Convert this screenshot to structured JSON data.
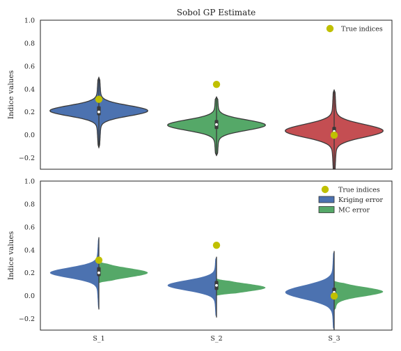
{
  "chart_data": [
    {
      "type": "violin",
      "title": "Sobol GP Estimate",
      "xlabel": "",
      "ylabel": "Indice values",
      "ylim": [
        -0.3,
        1.0
      ],
      "yticks": [
        -0.2,
        0.0,
        0.2,
        0.4,
        0.6,
        0.8,
        1.0
      ],
      "yticklabels": [
        "−0.2",
        "0.0",
        "0.2",
        "0.4",
        "0.6",
        "0.8",
        "1.0"
      ],
      "categories": [
        "S_1",
        "S_2",
        "S_3"
      ],
      "show_xticklabels": false,
      "split": false,
      "legend": {
        "position": "top-right",
        "entries": [
          {
            "label": "True indices",
            "kind": "marker",
            "color": "#c0c000"
          }
        ]
      },
      "violins": [
        {
          "category": "S_1",
          "color": "#4c72b0",
          "min": -0.11,
          "max": 0.5,
          "q1": 0.17,
          "median": 0.2,
          "q3": 0.25,
          "mode": 0.21,
          "spread": 0.045
        },
        {
          "category": "S_2",
          "color": "#55a868",
          "min": -0.18,
          "max": 0.33,
          "q1": 0.05,
          "median": 0.09,
          "q3": 0.13,
          "mode": 0.085,
          "spread": 0.045
        },
        {
          "category": "S_3",
          "color": "#c44e52",
          "min": -0.33,
          "max": 0.39,
          "q1": -0.02,
          "median": 0.03,
          "q3": 0.07,
          "mode": 0.035,
          "spread": 0.055
        }
      ],
      "true_indices": [
        0.31,
        0.44,
        -0.003
      ]
    },
    {
      "type": "violin",
      "title": "",
      "xlabel": "",
      "ylabel": "Indice values",
      "ylim": [
        -0.3,
        1.0
      ],
      "yticks": [
        -0.2,
        0.0,
        0.2,
        0.4,
        0.6,
        0.8,
        1.0
      ],
      "yticklabels": [
        "−0.2",
        "0.0",
        "0.2",
        "0.4",
        "0.6",
        "0.8",
        "1.0"
      ],
      "categories": [
        "S_1",
        "S_2",
        "S_3"
      ],
      "show_xticklabels": true,
      "split": true,
      "legend": {
        "position": "top-right",
        "entries": [
          {
            "label": "True indices",
            "kind": "marker",
            "color": "#c0c000"
          },
          {
            "label": "Kriging error",
            "kind": "patch",
            "color": "#4c72b0"
          },
          {
            "label": "MC error",
            "kind": "patch",
            "color": "#55a868"
          }
        ]
      },
      "series": [
        {
          "name": "Kriging error",
          "side": "left",
          "color": "#4c72b0",
          "violins": [
            {
              "category": "S_1",
              "min": -0.12,
              "max": 0.51,
              "q1": 0.17,
              "median": 0.2,
              "q3": 0.25,
              "mode": 0.2,
              "spread": 0.045
            },
            {
              "category": "S_2",
              "min": -0.19,
              "max": 0.34,
              "q1": 0.05,
              "median": 0.09,
              "q3": 0.13,
              "mode": 0.09,
              "spread": 0.045
            },
            {
              "category": "S_3",
              "min": -0.3,
              "max": 0.39,
              "q1": -0.02,
              "median": 0.03,
              "q3": 0.07,
              "mode": 0.03,
              "spread": 0.06
            }
          ]
        },
        {
          "name": "MC error",
          "side": "right",
          "color": "#55a868",
          "violins": [
            {
              "category": "S_1",
              "min": 0.11,
              "max": 0.3,
              "q1": 0.17,
              "median": 0.2,
              "q3": 0.25,
              "mode": 0.2,
              "spread": 0.04
            },
            {
              "category": "S_2",
              "min": 0.0,
              "max": 0.15,
              "q1": 0.05,
              "median": 0.09,
              "q3": 0.13,
              "mode": 0.07,
              "spread": 0.035
            },
            {
              "category": "S_3",
              "min": -0.13,
              "max": 0.13,
              "q1": -0.02,
              "median": 0.03,
              "q3": 0.07,
              "mode": 0.035,
              "spread": 0.04
            }
          ]
        }
      ],
      "true_indices": [
        0.31,
        0.44,
        -0.003
      ]
    }
  ]
}
